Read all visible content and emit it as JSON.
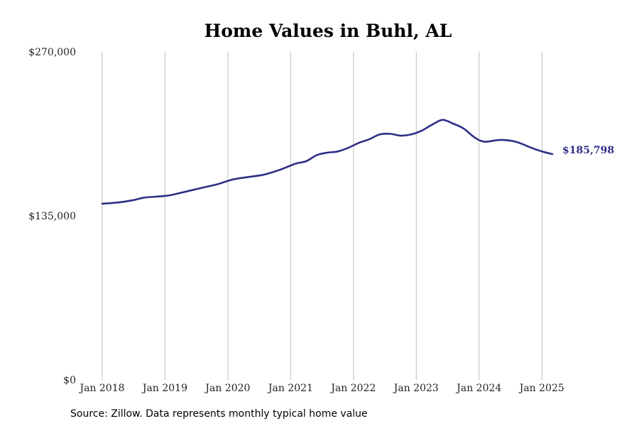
{
  "chart_data": {
    "type": "line",
    "title": "Home Values in Buhl, AL",
    "xlabel": "",
    "ylabel": "",
    "ylim": [
      0,
      270000
    ],
    "xlim": [
      "2018-01",
      "2025-03"
    ],
    "y_ticks": [
      {
        "value": 0,
        "label": "$0"
      },
      {
        "value": 135000,
        "label": "$135,000"
      },
      {
        "value": 270000,
        "label": "$270,000"
      }
    ],
    "x_ticks": [
      {
        "value": "2018-01",
        "label": "Jan 2018"
      },
      {
        "value": "2019-01",
        "label": "Jan 2019"
      },
      {
        "value": "2020-01",
        "label": "Jan 2020"
      },
      {
        "value": "2021-01",
        "label": "Jan 2021"
      },
      {
        "value": "2022-01",
        "label": "Jan 2022"
      },
      {
        "value": "2023-01",
        "label": "Jan 2023"
      },
      {
        "value": "2024-01",
        "label": "Jan 2024"
      },
      {
        "value": "2025-01",
        "label": "Jan 2025"
      }
    ],
    "grid": {
      "vertical": true,
      "horizontal": false
    },
    "legend": "none",
    "line_color": "#2e2e87",
    "end_label": "$185,798",
    "series": [
      {
        "x": [
          "2018-01",
          "2018-04",
          "2018-07",
          "2018-09",
          "2018-12",
          "2019-02",
          "2019-05",
          "2019-08",
          "2019-11",
          "2020-02",
          "2020-05",
          "2020-08",
          "2020-11",
          "2021-02",
          "2021-04",
          "2021-06",
          "2021-08",
          "2021-10",
          "2021-12",
          "2022-02",
          "2022-04",
          "2022-06",
          "2022-08",
          "2022-10",
          "2022-12",
          "2023-02",
          "2023-04",
          "2023-06",
          "2023-08",
          "2023-10",
          "2023-12",
          "2024-02",
          "2024-05",
          "2024-08",
          "2024-11",
          "2025-01",
          "2025-03"
        ],
        "y": [
          145000,
          146000,
          148000,
          150000,
          151000,
          152000,
          155000,
          158000,
          161000,
          165000,
          167000,
          169000,
          173000,
          178000,
          180000,
          185000,
          187000,
          188000,
          191000,
          195000,
          198000,
          202000,
          202500,
          201000,
          202000,
          205000,
          210000,
          214000,
          211000,
          207000,
          200000,
          196000,
          197500,
          196000,
          191000,
          188000,
          185798
        ]
      }
    ]
  },
  "source": "Source: Zillow. Data represents monthly typical home value"
}
